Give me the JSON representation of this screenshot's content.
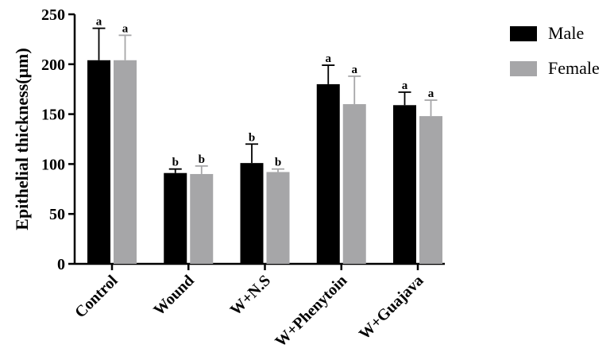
{
  "chart_data": {
    "type": "bar",
    "categories": [
      "Control",
      "Wound",
      "W+N.S",
      "W+Phenytoin",
      "W+Guajava"
    ],
    "series": [
      {
        "name": "Male",
        "color": "#000000",
        "values": [
          204,
          91,
          101,
          180,
          159
        ],
        "error": [
          32,
          4,
          19,
          19,
          13
        ],
        "significance": [
          "a",
          "b",
          "b",
          "a",
          "a"
        ]
      },
      {
        "name": "Female",
        "color": "#a6a6a8",
        "values": [
          204,
          90,
          92,
          160,
          148
        ],
        "error": [
          25,
          8,
          3,
          28,
          16
        ],
        "significance": [
          "a",
          "b",
          "b",
          "a",
          "a"
        ]
      }
    ],
    "title": "",
    "xlabel": "",
    "ylabel": "Epithelial thickness(μm)",
    "ylim": [
      0,
      250
    ],
    "yticks": [
      "0",
      "50",
      "100",
      "150",
      "200",
      "250"
    ],
    "grid": false,
    "legend_position": "top-right"
  }
}
